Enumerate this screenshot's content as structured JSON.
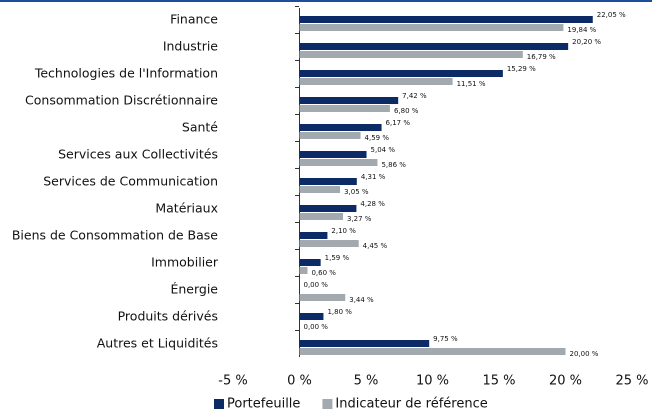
{
  "chart_data": {
    "type": "barh",
    "categories": [
      "Finance",
      "Industrie",
      "Technologies de l'Information",
      "Consommation Discrétionnaire",
      "Santé",
      "Services aux Collectivités",
      "Services de Communication",
      "Matériaux",
      "Biens de Consommation de Base",
      "Immobilier",
      "Énergie",
      "Produits dérivés",
      "Autres et Liquidités"
    ],
    "series": [
      {
        "name": "Portefeuille",
        "color": "#0b2a66",
        "values": [
          22.05,
          20.2,
          15.29,
          7.42,
          6.17,
          5.04,
          4.31,
          4.28,
          2.1,
          1.59,
          0.0,
          1.8,
          9.75
        ],
        "value_labels": [
          "22,05 %",
          "20,20 %",
          "15,29 %",
          "7,42 %",
          "6,17 %",
          "5,04 %",
          "4,31 %",
          "4,28 %",
          "2,10 %",
          "1,59 %",
          "0,00 %",
          "1,80 %",
          "9,75 %"
        ]
      },
      {
        "name": "Indicateur de référence",
        "color": "#a2a9af",
        "values": [
          19.84,
          16.79,
          11.51,
          6.8,
          4.59,
          5.86,
          3.05,
          3.27,
          4.45,
          0.6,
          3.44,
          0.0,
          20.0
        ],
        "value_labels": [
          "19,84 %",
          "16,79 %",
          "11,51 %",
          "6,80 %",
          "4,59 %",
          "5,86 %",
          "3,05 %",
          "3,27 %",
          "4,45 %",
          "0,60 %",
          "3,44 %",
          "0,00 %",
          "20,00 %"
        ]
      }
    ],
    "xlim": [
      -5,
      25
    ],
    "xticks": [
      {
        "value": -5,
        "label": "-5 %"
      },
      {
        "value": 0,
        "label": "0 %"
      },
      {
        "value": 5,
        "label": "5 %"
      },
      {
        "value": 10,
        "label": "10 %"
      },
      {
        "value": 15,
        "label": "15 %"
      },
      {
        "value": 20,
        "label": "20 %"
      },
      {
        "value": 25,
        "label": "25 %"
      }
    ],
    "legend": "bottom"
  }
}
